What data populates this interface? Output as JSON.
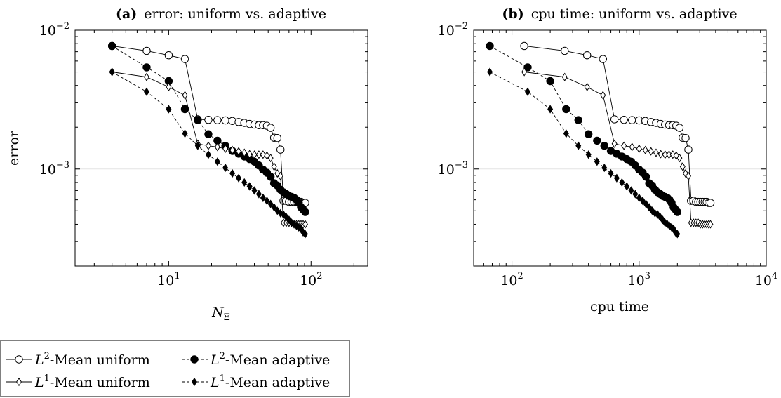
{
  "chart_data": [
    {
      "type": "line",
      "panel_letter": "(a)",
      "title": "error: uniform vs. adaptive",
      "xlabel": "N",
      "xlabel_sub": "Ξ",
      "ylabel": "error",
      "xscale": "log",
      "yscale": "log",
      "xlim": [
        2.2,
        250
      ],
      "ylim": [
        0.0002,
        0.01
      ],
      "xticks": [
        {
          "value": 10,
          "mantissa": "10",
          "exponent": "1"
        },
        {
          "value": 100,
          "mantissa": "10",
          "exponent": "2"
        }
      ],
      "yticks": [
        {
          "value": 0.001,
          "mantissa": "10",
          "exponent": "−3"
        },
        {
          "value": 0.01,
          "mantissa": "10",
          "exponent": "−2"
        }
      ],
      "grid": true,
      "series": [
        {
          "name": "L²-Mean uniform",
          "marker": "open-circle",
          "line": "solid",
          "x": [
            4,
            7,
            10,
            13,
            16,
            19,
            22,
            25,
            28,
            31,
            34,
            37,
            40,
            43,
            46,
            49,
            52,
            55,
            58,
            61,
            64,
            67,
            70,
            73,
            76,
            79,
            82,
            85,
            88,
            91
          ],
          "y": [
            0.0077,
            0.0071,
            0.0066,
            0.0062,
            0.00228,
            0.00226,
            0.00225,
            0.00224,
            0.00222,
            0.00218,
            0.00215,
            0.00211,
            0.00209,
            0.00207,
            0.00207,
            0.00205,
            0.00198,
            0.00168,
            0.00167,
            0.00138,
            0.00059,
            0.00059,
            0.00058,
            0.00058,
            0.00058,
            0.00058,
            0.00058,
            0.00058,
            0.00057,
            0.00057
          ]
        },
        {
          "name": "L²-Mean adaptive",
          "marker": "filled-circle",
          "line": "dashed",
          "x": [
            4,
            7,
            10,
            13,
            16,
            19,
            22,
            25,
            28,
            31,
            34,
            37,
            40,
            43,
            46,
            49,
            52,
            55,
            58,
            61,
            64,
            67,
            70,
            73,
            76,
            79,
            82,
            85,
            88,
            91
          ],
          "y": [
            0.0077,
            0.0054,
            0.0043,
            0.0027,
            0.00225,
            0.00178,
            0.0016,
            0.00147,
            0.00135,
            0.00129,
            0.00123,
            0.00118,
            0.00113,
            0.00106,
            0.00099,
            0.00094,
            0.00088,
            0.00079,
            0.00076,
            0.00071,
            0.00068,
            0.00066,
            0.00064,
            0.00063,
            0.00062,
            0.0006,
            0.00057,
            0.00053,
            0.00051,
            0.00049
          ]
        },
        {
          "name": "L¹-Mean uniform",
          "marker": "open-diamond",
          "line": "solid",
          "x": [
            4,
            7,
            10,
            13,
            16,
            19,
            22,
            25,
            28,
            31,
            34,
            37,
            40,
            43,
            46,
            49,
            52,
            55,
            58,
            61,
            64,
            67,
            70,
            73,
            76,
            79,
            82,
            85,
            88,
            91
          ],
          "y": [
            0.005,
            0.0046,
            0.0039,
            0.0034,
            0.00152,
            0.00147,
            0.00144,
            0.0014,
            0.00137,
            0.00134,
            0.00131,
            0.00128,
            0.00127,
            0.00127,
            0.00127,
            0.00125,
            0.0012,
            0.00104,
            0.00093,
            0.00089,
            0.00041,
            0.00041,
            0.00041,
            0.00041,
            0.0004,
            0.0004,
            0.0004,
            0.0004,
            0.0004,
            0.0004
          ]
        },
        {
          "name": "L¹-Mean adaptive",
          "marker": "filled-diamond",
          "line": "dashed",
          "x": [
            4,
            7,
            10,
            13,
            16,
            19,
            22,
            25,
            28,
            31,
            34,
            37,
            40,
            43,
            46,
            49,
            52,
            55,
            58,
            61,
            64,
            67,
            70,
            73,
            76,
            79,
            82,
            85,
            88,
            91
          ],
          "y": [
            0.005,
            0.0036,
            0.0027,
            0.0018,
            0.00147,
            0.00127,
            0.00113,
            0.00102,
            0.00093,
            0.00086,
            0.0008,
            0.00075,
            0.0007,
            0.00066,
            0.00062,
            0.00059,
            0.00056,
            0.00053,
            0.0005,
            0.00048,
            0.00047,
            0.00045,
            0.00043,
            0.00041,
            0.0004,
            0.00039,
            0.00038,
            0.00037,
            0.00035,
            0.00034
          ]
        }
      ]
    },
    {
      "type": "line",
      "panel_letter": "(b)",
      "title": "cpu time: uniform vs. adaptive",
      "xlabel": "cpu time",
      "ylabel": "",
      "xscale": "log",
      "yscale": "log",
      "xlim": [
        50,
        10000
      ],
      "ylim": [
        0.0002,
        0.01
      ],
      "xticks": [
        {
          "value": 100,
          "mantissa": "10",
          "exponent": "2"
        },
        {
          "value": 1000,
          "mantissa": "10",
          "exponent": "3"
        },
        {
          "value": 10000,
          "mantissa": "10",
          "exponent": "4"
        }
      ],
      "yticks": [
        {
          "value": 0.001,
          "mantissa": "10",
          "exponent": "−3"
        },
        {
          "value": 0.01,
          "mantissa": "10",
          "exponent": "−2"
        }
      ],
      "grid": true,
      "series": [
        {
          "name": "L²-Mean uniform",
          "marker": "open-circle",
          "line": "solid",
          "x": [
            125,
            260,
            390,
            520,
            640,
            760,
            880,
            1000,
            1120,
            1240,
            1360,
            1480,
            1600,
            1720,
            1840,
            1960,
            2080,
            2200,
            2320,
            2440,
            2560,
            2680,
            2800,
            2920,
            3040,
            3160,
            3280,
            3400,
            3520,
            3640
          ],
          "y": [
            0.0077,
            0.0071,
            0.0066,
            0.0062,
            0.00228,
            0.00226,
            0.00225,
            0.00224,
            0.00222,
            0.00218,
            0.00215,
            0.00211,
            0.00209,
            0.00207,
            0.00207,
            0.00205,
            0.00198,
            0.00168,
            0.00167,
            0.00138,
            0.00059,
            0.00059,
            0.00058,
            0.00058,
            0.00058,
            0.00058,
            0.00058,
            0.00058,
            0.00057,
            0.00057
          ]
        },
        {
          "name": "L²-Mean adaptive",
          "marker": "filled-circle",
          "line": "dashed",
          "x": [
            67,
            133,
            200,
            267,
            333,
            400,
            467,
            533,
            600,
            667,
            733,
            800,
            867,
            933,
            1000,
            1067,
            1133,
            1200,
            1267,
            1333,
            1400,
            1467,
            1533,
            1600,
            1667,
            1733,
            1800,
            1867,
            1933,
            2000
          ],
          "y": [
            0.0077,
            0.0054,
            0.0043,
            0.0027,
            0.00225,
            0.00178,
            0.0016,
            0.00147,
            0.00135,
            0.00129,
            0.00123,
            0.00118,
            0.00113,
            0.00106,
            0.00099,
            0.00094,
            0.00088,
            0.00079,
            0.00076,
            0.00071,
            0.00068,
            0.00066,
            0.00064,
            0.00063,
            0.00062,
            0.0006,
            0.00057,
            0.00053,
            0.00051,
            0.00049
          ]
        },
        {
          "name": "L¹-Mean uniform",
          "marker": "open-diamond",
          "line": "solid",
          "x": [
            125,
            260,
            390,
            520,
            640,
            760,
            880,
            1000,
            1120,
            1240,
            1360,
            1480,
            1600,
            1720,
            1840,
            1960,
            2080,
            2200,
            2320,
            2440,
            2560,
            2680,
            2800,
            2920,
            3040,
            3160,
            3280,
            3400,
            3520,
            3640
          ],
          "y": [
            0.005,
            0.0046,
            0.0039,
            0.0034,
            0.00152,
            0.00147,
            0.00144,
            0.0014,
            0.00137,
            0.00134,
            0.00131,
            0.00128,
            0.00127,
            0.00127,
            0.00127,
            0.00125,
            0.0012,
            0.00104,
            0.00093,
            0.00089,
            0.00041,
            0.00041,
            0.00041,
            0.00041,
            0.0004,
            0.0004,
            0.0004,
            0.0004,
            0.0004,
            0.0004
          ]
        },
        {
          "name": "L¹-Mean adaptive",
          "marker": "filled-diamond",
          "line": "dashed",
          "x": [
            67,
            133,
            200,
            267,
            333,
            400,
            467,
            533,
            600,
            667,
            733,
            800,
            867,
            933,
            1000,
            1067,
            1133,
            1200,
            1267,
            1333,
            1400,
            1467,
            1533,
            1600,
            1667,
            1733,
            1800,
            1867,
            1933,
            2000
          ],
          "y": [
            0.005,
            0.0036,
            0.0027,
            0.0018,
            0.00147,
            0.00127,
            0.00113,
            0.00102,
            0.00093,
            0.00086,
            0.0008,
            0.00075,
            0.0007,
            0.00066,
            0.00062,
            0.00059,
            0.00056,
            0.00053,
            0.0005,
            0.00048,
            0.00047,
            0.00045,
            0.00043,
            0.00041,
            0.0004,
            0.00039,
            0.00038,
            0.00037,
            0.00035,
            0.00034
          ]
        }
      ]
    }
  ],
  "legend": {
    "placement": "bottom-left",
    "entries": [
      {
        "prefix": "L",
        "sup": "2",
        "text": "-Mean uniform",
        "marker": "open-circle",
        "line": "solid"
      },
      {
        "prefix": "L",
        "sup": "2",
        "text": "-Mean adaptive",
        "marker": "filled-circle",
        "line": "dashed"
      },
      {
        "prefix": "L",
        "sup": "1",
        "text": "-Mean uniform",
        "marker": "open-diamond",
        "line": "solid"
      },
      {
        "prefix": "L",
        "sup": "1",
        "text": "-Mean adaptive",
        "marker": "filled-diamond",
        "line": "dashed"
      }
    ]
  }
}
